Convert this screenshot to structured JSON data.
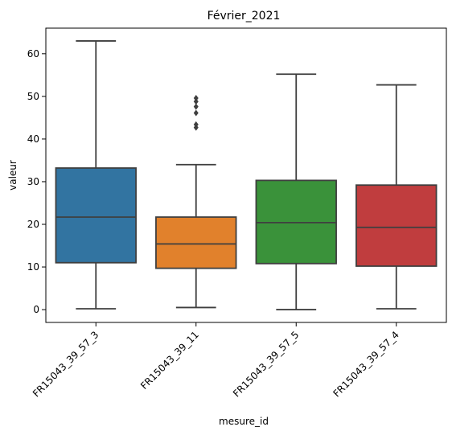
{
  "chart_data": {
    "type": "box",
    "title": "Février_2021",
    "xlabel": "mesure_id",
    "ylabel": "valeur",
    "ylim": [
      -3,
      66
    ],
    "yticks": [
      0,
      10,
      20,
      30,
      40,
      50,
      60
    ],
    "grid": false,
    "categories": [
      "FR15043_39_57_3",
      "FR15043_39_11",
      "FR15043_39_57_5",
      "FR15043_39_57_4"
    ],
    "colors": [
      "#3274a1",
      "#e1812c",
      "#3a923a",
      "#c03d3e"
    ],
    "boxes": [
      {
        "category": "FR15043_39_57_3",
        "whisker_low": 0.2,
        "q1": 11.0,
        "median": 21.7,
        "q3": 33.2,
        "whisker_high": 63.0,
        "outliers": []
      },
      {
        "category": "FR15043_39_11",
        "whisker_low": 0.5,
        "q1": 9.7,
        "median": 15.4,
        "q3": 21.7,
        "whisker_high": 34.0,
        "outliers": [
          42.7,
          43.4,
          46.1,
          47.6,
          48.8,
          49.6
        ]
      },
      {
        "category": "FR15043_39_57_5",
        "whisker_low": 0.0,
        "q1": 10.8,
        "median": 20.4,
        "q3": 30.3,
        "whisker_high": 55.2,
        "outliers": []
      },
      {
        "category": "FR15043_39_57_4",
        "whisker_low": 0.2,
        "q1": 10.2,
        "median": 19.3,
        "q3": 29.2,
        "whisker_high": 52.7,
        "outliers": []
      }
    ]
  }
}
